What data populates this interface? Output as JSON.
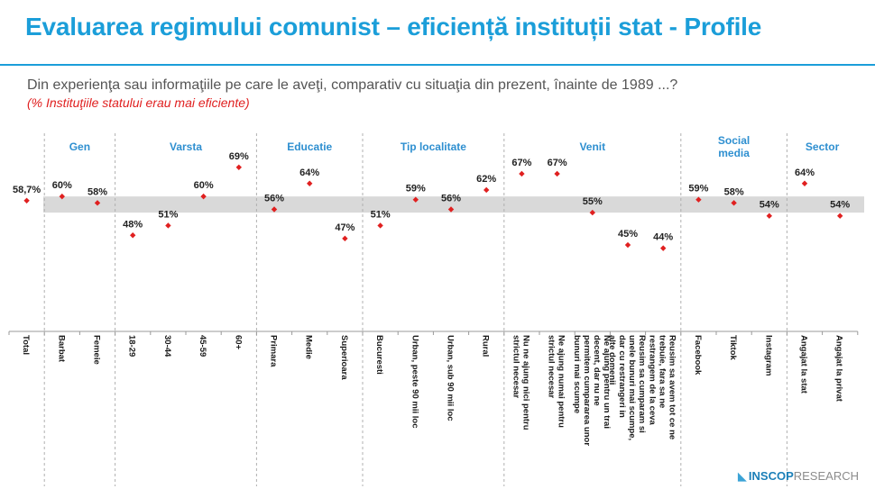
{
  "title": "Evaluarea regimului comunist – eficiență instituții stat - Profile",
  "question": "Din experienţa sau informaţiile pe care le aveţi, comparativ cu situaţia din prezent, înainte de 1989 ...?",
  "subquestion": "(% Instituţiile statului erau mai eficiente)",
  "logo": {
    "mark": "◣",
    "part1": "INSCOP",
    "part2": "RESEARCH"
  },
  "colors": {
    "title": "#1b9ed9",
    "marker": "#e02020",
    "band": "#d9d9d9",
    "group_label": "#2e8fd0"
  },
  "chart_data": {
    "type": "scatter",
    "title": "Evaluarea regimului comunist – eficiență instituții stat - Profile",
    "ylabel": "% Instituţiile statului erau mai eficiente",
    "ylim": [
      40,
      72
    ],
    "reference_band": [
      55,
      60
    ],
    "groups": [
      {
        "name": "",
        "items": [
          {
            "label": "Total",
            "value": 58.7,
            "text": "58,7%"
          }
        ]
      },
      {
        "name": "Gen",
        "items": [
          {
            "label": "Barbat",
            "value": 60,
            "text": "60%"
          },
          {
            "label": "Femeie",
            "value": 58,
            "text": "58%"
          }
        ]
      },
      {
        "name": "Varsta",
        "items": [
          {
            "label": "18-29",
            "value": 48,
            "text": "48%"
          },
          {
            "label": "30-44",
            "value": 51,
            "text": "51%"
          },
          {
            "label": "45-59",
            "value": 60,
            "text": "60%"
          },
          {
            "label": "60+",
            "value": 69,
            "text": "69%"
          }
        ]
      },
      {
        "name": "Educatie",
        "items": [
          {
            "label": "Primara",
            "value": 56,
            "text": "56%"
          },
          {
            "label": "Medie",
            "value": 64,
            "text": "64%"
          },
          {
            "label": "Superioara",
            "value": 47,
            "text": "47%"
          }
        ]
      },
      {
        "name": "Tip localitate",
        "items": [
          {
            "label": "Bucuresti",
            "value": 51,
            "text": "51%"
          },
          {
            "label": "Urban, peste 90 mii loc",
            "value": 59,
            "text": "59%"
          },
          {
            "label": "Urban, sub 90 mii loc",
            "value": 56,
            "text": "56%"
          },
          {
            "label": "Rural",
            "value": 62,
            "text": "62%"
          }
        ]
      },
      {
        "name": "Venit",
        "items": [
          {
            "label": "Nu ne ajung nici pentru strictul necesar",
            "value": 67,
            "text": "67%"
          },
          {
            "label": "Ne ajung numai pentru strictul necesar",
            "value": 67,
            "text": "67%"
          },
          {
            "label": "Ne ajung pentru un trai decent, dar nu ne permitem cumpararea unor bunuri mai scumpe",
            "value": 55,
            "text": "55%"
          },
          {
            "label": "Reusim sa cumparam si unele bunuri mai scumpe, dar cu restrangeri in alte domenii",
            "value": 45,
            "text": "45%"
          },
          {
            "label": "Reusim sa avem tot ce ne trebuie, fara sa ne restrangem de la ceva",
            "value": 44,
            "text": "44%"
          }
        ]
      },
      {
        "name": "Social media",
        "items": [
          {
            "label": "Facebook",
            "value": 59,
            "text": "59%"
          },
          {
            "label": "Tiktok",
            "value": 58,
            "text": "58%"
          },
          {
            "label": "Instagram",
            "value": 54,
            "text": "54%"
          }
        ]
      },
      {
        "name": "Sector",
        "items": [
          {
            "label": "Angajat la stat",
            "value": 64,
            "text": "64%"
          },
          {
            "label": "Angajat la privat",
            "value": 54,
            "text": "54%"
          }
        ]
      }
    ]
  }
}
